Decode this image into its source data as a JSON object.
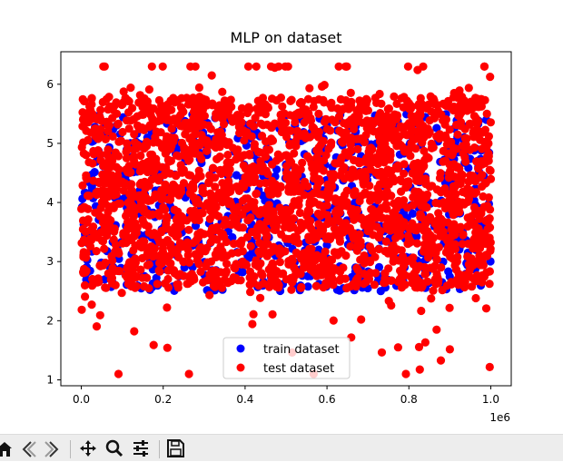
{
  "window": {
    "toolbar": {
      "home": "home-icon",
      "back": "back-icon",
      "forward": "forward-icon",
      "pan": "move-icon",
      "zoom": "zoom-icon",
      "configure": "sliders-icon",
      "save": "save-icon"
    }
  },
  "chart_data": {
    "type": "scatter",
    "title": "MLP on dataset",
    "xlabel": "",
    "ylabel": "",
    "x_offset_text": "1e6",
    "xlim": [
      -50000,
      1050000
    ],
    "ylim": [
      0.9,
      6.55
    ],
    "x_ticks": [
      0,
      200000,
      400000,
      600000,
      800000,
      1000000
    ],
    "x_tick_labels": [
      "0.0",
      "0.2",
      "0.4",
      "0.6",
      "0.8",
      "1.0"
    ],
    "y_ticks": [
      1,
      2,
      3,
      4,
      5,
      6
    ],
    "y_tick_labels": [
      "1",
      "2",
      "3",
      "4",
      "5",
      "6"
    ],
    "legend_position": "lower-center",
    "series": [
      {
        "name": "train dataset",
        "color": "#0000ff",
        "description_range": {
          "x": [
            0,
            1000000
          ],
          "y": [
            2.5,
            5.5
          ]
        }
      },
      {
        "name": "test dataset",
        "color": "#ff0000",
        "description_range": {
          "x": [
            0,
            1000000
          ],
          "y": [
            1.1,
            6.3
          ]
        }
      }
    ]
  }
}
